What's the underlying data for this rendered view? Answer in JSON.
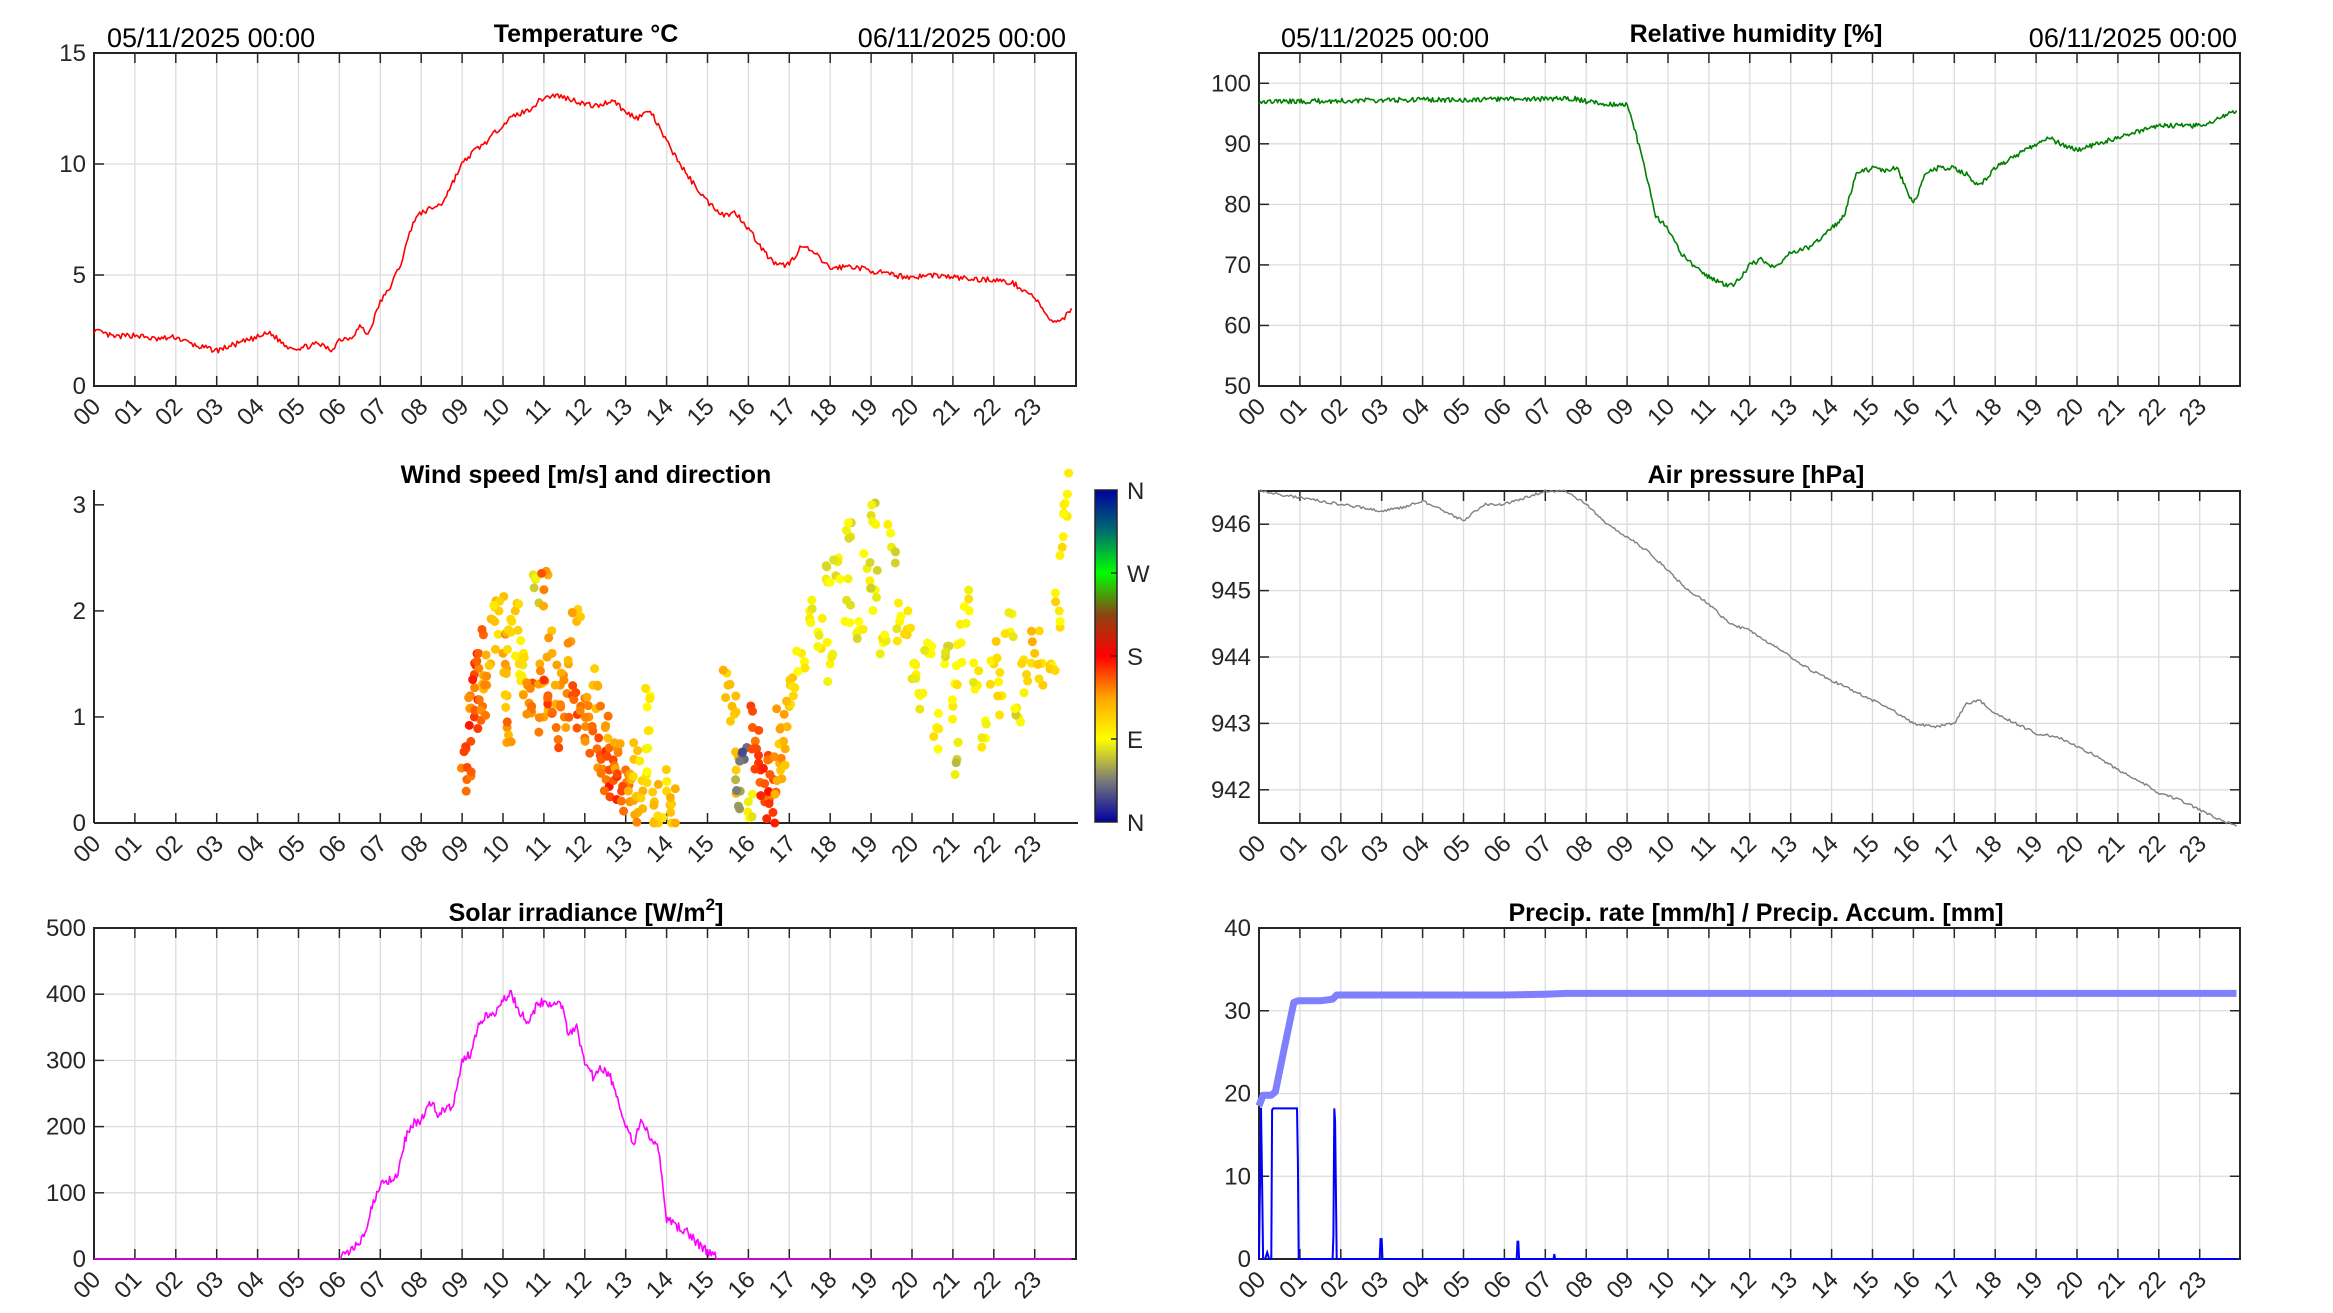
{
  "header": {
    "start_date": "05/11/2025 00:00",
    "end_date": "06/11/2025 00:00"
  },
  "x_ticks": [
    "00",
    "01",
    "02",
    "03",
    "04",
    "05",
    "06",
    "07",
    "08",
    "09",
    "10",
    "11",
    "12",
    "13",
    "14",
    "15",
    "16",
    "17",
    "18",
    "19",
    "20",
    "21",
    "22",
    "23"
  ],
  "chart_data": [
    {
      "id": "temperature",
      "type": "line",
      "title": "Temperature °C",
      "xlabel": "",
      "ylabel": "",
      "xlim": [
        0,
        23.9
      ],
      "ylim": [
        0,
        15
      ],
      "yticks": [
        0,
        5,
        10,
        15
      ],
      "grid": true,
      "color": "#ff0000",
      "x": [
        0,
        0.5,
        1,
        1.5,
        2,
        2.5,
        3,
        3.5,
        4,
        4.3,
        4.7,
        5,
        5.5,
        5.8,
        6,
        6.3,
        6.5,
        6.7,
        7,
        7.2,
        7.5,
        7.8,
        8,
        8.5,
        9,
        9.3,
        9.6,
        10,
        10.3,
        10.6,
        11,
        11.3,
        11.7,
        12,
        12.3,
        12.7,
        13,
        13.3,
        13.6,
        14,
        14.5,
        15,
        15.4,
        15.7,
        16,
        16.4,
        16.7,
        17,
        17.3,
        17.6,
        18,
        18.5,
        19,
        19.5,
        20,
        20.5,
        21,
        21.5,
        22,
        22.5,
        23,
        23.3,
        23.6,
        23.9
      ],
      "y": [
        2.5,
        2.2,
        2.3,
        2.1,
        2.2,
        1.8,
        1.6,
        1.9,
        2.2,
        2.4,
        1.8,
        1.7,
        1.9,
        1.6,
        2.1,
        2.2,
        2.7,
        2.3,
        3.8,
        4.3,
        5.5,
        7.4,
        7.8,
        8.2,
        10.0,
        10.6,
        11.0,
        11.8,
        12.2,
        12.4,
        13.0,
        13.1,
        12.9,
        12.7,
        12.6,
        12.9,
        12.3,
        12.1,
        12.4,
        11.0,
        9.5,
        8.3,
        7.7,
        7.8,
        7.1,
        6.0,
        5.4,
        5.5,
        6.3,
        6.0,
        5.3,
        5.4,
        5.2,
        5.0,
        4.9,
        5.0,
        4.9,
        4.8,
        4.8,
        4.6,
        4.0,
        3.1,
        2.8,
        3.5
      ],
      "annotations": [
        "05/11/2025 00:00",
        "06/11/2025 00:00"
      ]
    },
    {
      "id": "humidity",
      "type": "line",
      "title": "Relative humidity [%]",
      "xlabel": "",
      "ylabel": "",
      "xlim": [
        0,
        23.9
      ],
      "ylim": [
        50,
        105
      ],
      "yticks": [
        50,
        60,
        70,
        80,
        90,
        100
      ],
      "grid": true,
      "color": "#008000",
      "x": [
        0,
        1,
        2,
        3,
        4,
        5,
        6,
        7,
        7.7,
        8,
        8.5,
        9,
        9.2,
        9.5,
        9.7,
        10,
        10.3,
        10.6,
        11,
        11.3,
        11.6,
        12,
        12.3,
        12.6,
        13,
        13.5,
        14,
        14.3,
        14.6,
        15,
        15.3,
        15.6,
        16,
        16.3,
        16.6,
        17,
        17.3,
        17.6,
        18,
        18.5,
        19,
        19.3,
        19.6,
        20,
        20.5,
        21,
        21.5,
        22,
        22.5,
        23,
        23.4,
        23.9
      ],
      "y": [
        97.0,
        97.0,
        97.1,
        97.2,
        97.3,
        97.2,
        97.4,
        97.4,
        97.5,
        97.0,
        96.6,
        96.5,
        92,
        84,
        78,
        76,
        72,
        70,
        68,
        67,
        66.5,
        70,
        71,
        69.5,
        72,
        73,
        76,
        78,
        85,
        86,
        85.5,
        86,
        80,
        85,
        86,
        86,
        85,
        83,
        86,
        88,
        90,
        91,
        90,
        89,
        90,
        91,
        92,
        93,
        93,
        93,
        94,
        95.5
      ]
    },
    {
      "id": "wind",
      "type": "scatter",
      "title": "Wind speed [m/s] and direction",
      "xlabel": "",
      "ylabel": "",
      "xlim": [
        0,
        23.9
      ],
      "ylim": [
        0,
        3.14
      ],
      "yticks": [
        0,
        1,
        2,
        3
      ],
      "grid": false,
      "colorbar": {
        "labels": [
          "N",
          "E",
          "S",
          "W",
          "N"
        ],
        "colors": [
          "#0000a0",
          "#7a7a7a",
          "#ffff00",
          "#ffa500",
          "#ff0000",
          "#8b4513",
          "#00ff00",
          "#006e6e",
          "#0000a0"
        ]
      },
      "points_note": "speed in m/s; direction in degrees (0=N, 90=E, 180=S, 270=W)",
      "points": [
        [
          9.1,
          0.3,
          150
        ],
        [
          9.1,
          0.7,
          150
        ],
        [
          9.2,
          1.2,
          145
        ],
        [
          9.3,
          1.4,
          160
        ],
        [
          9.3,
          1.0,
          165
        ],
        [
          9.4,
          1.6,
          155
        ],
        [
          9.5,
          1.1,
          150
        ],
        [
          9.6,
          1.3,
          140
        ],
        [
          9.7,
          1.5,
          130
        ],
        [
          9.8,
          1.9,
          120
        ],
        [
          9.9,
          2.0,
          115
        ],
        [
          10.0,
          1.6,
          135
        ],
        [
          10.1,
          1.2,
          120
        ],
        [
          10.1,
          0.9,
          140
        ],
        [
          10.2,
          1.8,
          110
        ],
        [
          10.3,
          2.0,
          120
        ],
        [
          10.4,
          1.4,
          95
        ],
        [
          10.5,
          1.6,
          100
        ],
        [
          10.6,
          1.3,
          145
        ],
        [
          10.7,
          1.1,
          150
        ],
        [
          10.8,
          2.3,
          80
        ],
        [
          10.9,
          1.5,
          130
        ],
        [
          11.0,
          1.0,
          135
        ],
        [
          11.0,
          2.2,
          145
        ],
        [
          11.1,
          1.2,
          155
        ],
        [
          11.2,
          1.6,
          130
        ],
        [
          11.3,
          0.9,
          150
        ],
        [
          11.4,
          1.3,
          140
        ],
        [
          11.5,
          1.0,
          145
        ],
        [
          11.6,
          1.5,
          135
        ],
        [
          11.7,
          1.2,
          160
        ],
        [
          11.8,
          1.9,
          125
        ],
        [
          11.9,
          1.1,
          150
        ],
        [
          12.0,
          0.8,
          150
        ],
        [
          12.1,
          1.0,
          140
        ],
        [
          12.2,
          1.3,
          120
        ],
        [
          12.3,
          0.7,
          150
        ],
        [
          12.4,
          0.6,
          155
        ],
        [
          12.5,
          0.9,
          135
        ],
        [
          12.6,
          0.5,
          160
        ],
        [
          12.7,
          0.4,
          155
        ],
        [
          12.8,
          0.7,
          140
        ],
        [
          12.9,
          0.3,
          160
        ],
        [
          13.0,
          0.5,
          150
        ],
        [
          13.1,
          0.2,
          140
        ],
        [
          13.2,
          0.6,
          120
        ],
        [
          13.3,
          0.1,
          130
        ],
        [
          13.4,
          0.4,
          110
        ],
        [
          13.5,
          0.7,
          100
        ],
        [
          13.6,
          1.2,
          90
        ],
        [
          13.7,
          0.2,
          120
        ],
        [
          13.8,
          0.0,
          115
        ],
        [
          14.0,
          0.3,
          110
        ],
        [
          14.1,
          0.1,
          120
        ],
        [
          15.5,
          1.3,
          120
        ],
        [
          15.6,
          1.1,
          125
        ],
        [
          15.7,
          0.5,
          115
        ],
        [
          15.8,
          0.3,
          60
        ],
        [
          15.9,
          0.6,
          40
        ],
        [
          16.0,
          0.2,
          85
        ],
        [
          16.1,
          0.9,
          155
        ],
        [
          16.2,
          0.7,
          160
        ],
        [
          16.3,
          0.5,
          165
        ],
        [
          16.4,
          0.2,
          160
        ],
        [
          16.5,
          0.6,
          150
        ],
        [
          16.6,
          0.1,
          165
        ],
        [
          16.7,
          0.4,
          130
        ],
        [
          16.8,
          0.9,
          125
        ],
        [
          16.9,
          0.7,
          130
        ],
        [
          17.0,
          1.1,
          120
        ],
        [
          17.1,
          1.2,
          110
        ],
        [
          17.3,
          1.6,
          100
        ],
        [
          17.5,
          2.0,
          95
        ],
        [
          17.7,
          1.8,
          90
        ],
        [
          17.9,
          2.3,
          85
        ],
        [
          18.0,
          1.5,
          95
        ],
        [
          18.2,
          2.5,
          88
        ],
        [
          18.4,
          2.1,
          80
        ],
        [
          18.5,
          2.7,
          82
        ],
        [
          18.7,
          1.9,
          90
        ],
        [
          18.9,
          2.4,
          85
        ],
        [
          19.0,
          2.9,
          80
        ],
        [
          19.1,
          2.2,
          88
        ],
        [
          19.3,
          1.7,
          90
        ],
        [
          19.5,
          2.6,
          84
        ],
        [
          19.7,
          1.9,
          95
        ],
        [
          19.9,
          2.0,
          100
        ],
        [
          20.1,
          1.4,
          95
        ],
        [
          20.2,
          1.2,
          90
        ],
        [
          20.4,
          1.6,
          92
        ],
        [
          20.6,
          0.9,
          95
        ],
        [
          20.8,
          1.5,
          90
        ],
        [
          21.0,
          1.1,
          100
        ],
        [
          21.1,
          0.6,
          75
        ],
        [
          21.2,
          1.7,
          88
        ],
        [
          21.4,
          2.0,
          92
        ],
        [
          21.6,
          1.3,
          95
        ],
        [
          21.8,
          0.8,
          90
        ],
        [
          22.0,
          1.5,
          110
        ],
        [
          22.2,
          1.2,
          100
        ],
        [
          22.4,
          1.8,
          95
        ],
        [
          22.6,
          1.0,
          88
        ],
        [
          22.8,
          1.4,
          110
        ],
        [
          23.0,
          1.6,
          120
        ],
        [
          23.2,
          1.3,
          115
        ],
        [
          23.4,
          1.5,
          105
        ],
        [
          23.6,
          2.0,
          100
        ],
        [
          23.7,
          2.7,
          95
        ],
        [
          23.8,
          3.1,
          95
        ]
      ]
    },
    {
      "id": "pressure",
      "type": "line",
      "title": "Air pressure [hPa]",
      "xlabel": "",
      "ylabel": "",
      "xlim": [
        0,
        23.9
      ],
      "ylim": [
        941.5,
        946.5
      ],
      "yticks": [
        942,
        943,
        944,
        945,
        946
      ],
      "grid": true,
      "color": "#808080",
      "x": [
        0,
        0.5,
        1,
        1.5,
        2,
        2.5,
        3,
        3.5,
        4,
        4.5,
        5,
        5.5,
        6,
        6.5,
        7,
        7.5,
        8,
        8.5,
        9,
        9.5,
        10,
        10.5,
        11,
        11.5,
        12,
        12.5,
        13,
        13.5,
        14,
        14.5,
        15,
        15.5,
        16,
        16.5,
        17,
        17.3,
        17.6,
        18,
        18.5,
        19,
        19.5,
        20,
        20.5,
        21,
        21.5,
        22,
        22.5,
        23,
        23.5,
        23.9
      ],
      "y": [
        946.5,
        946.45,
        946.4,
        946.35,
        946.3,
        946.25,
        946.2,
        946.25,
        946.35,
        946.2,
        946.05,
        946.3,
        946.3,
        946.4,
        946.5,
        946.5,
        946.3,
        946.0,
        945.8,
        945.6,
        945.3,
        945.0,
        944.8,
        944.5,
        944.4,
        944.2,
        944.0,
        943.8,
        943.65,
        943.5,
        943.35,
        943.2,
        943.0,
        942.95,
        943.0,
        943.3,
        943.35,
        943.15,
        943.0,
        942.85,
        942.8,
        942.65,
        942.5,
        942.3,
        942.15,
        941.95,
        941.85,
        941.7,
        941.55,
        941.45
      ]
    },
    {
      "id": "solar",
      "type": "line",
      "title": "Solar irradiance [W/m2]",
      "title_main": "Solar irradiance [W/m",
      "title_sup": "2",
      "title_tail": "]",
      "xlabel": "",
      "ylabel": "",
      "xlim": [
        0,
        23.9
      ],
      "ylim": [
        0,
        500
      ],
      "yticks": [
        0,
        100,
        200,
        300,
        400,
        500
      ],
      "grid": true,
      "color": "#ff00ff",
      "x": [
        0,
        1,
        2,
        3,
        4,
        5,
        6,
        6.2,
        6.4,
        6.6,
        6.8,
        7.0,
        7.2,
        7.4,
        7.6,
        7.8,
        8.0,
        8.2,
        8.4,
        8.6,
        8.8,
        9.0,
        9.2,
        9.4,
        9.6,
        9.8,
        10.0,
        10.2,
        10.4,
        10.6,
        10.8,
        11.0,
        11.2,
        11.4,
        11.6,
        11.8,
        12.0,
        12.2,
        12.4,
        12.6,
        12.8,
        13.0,
        13.2,
        13.4,
        13.6,
        13.8,
        14.0,
        14.5,
        15.0,
        15.3,
        16,
        17,
        18,
        19,
        20,
        21,
        22,
        23,
        23.9
      ],
      "y": [
        0,
        0,
        0,
        0,
        0,
        0,
        0,
        8,
        20,
        35,
        80,
        115,
        120,
        125,
        180,
        205,
        210,
        240,
        220,
        225,
        235,
        300,
        310,
        355,
        370,
        370,
        395,
        400,
        375,
        360,
        380,
        390,
        385,
        390,
        340,
        350,
        300,
        275,
        290,
        280,
        240,
        200,
        175,
        210,
        180,
        165,
        60,
        40,
        10,
        0,
        0,
        0,
        0,
        0,
        0,
        0,
        0,
        0,
        0
      ]
    },
    {
      "id": "precipitation",
      "type": "line",
      "title": "Precip. rate [mm/h] / Precip. Accum. [mm]",
      "xlabel": "",
      "ylabel": "",
      "xlim": [
        0,
        23.9
      ],
      "ylim": [
        0,
        40
      ],
      "yticks": [
        0,
        10,
        20,
        30,
        40
      ],
      "grid": true,
      "series": [
        {
          "name": "Precip. Accum. [mm]",
          "color": "#8080ff",
          "x": [
            0,
            0.1,
            0.3,
            0.4,
            0.6,
            0.85,
            0.95,
            1.5,
            1.8,
            1.9,
            2.0,
            6.0,
            7.0,
            7.5,
            12,
            23.9
          ],
          "y": [
            18.5,
            19.8,
            19.8,
            20.2,
            25,
            31,
            31.2,
            31.2,
            31.4,
            31.9,
            31.9,
            31.9,
            32.0,
            32.1,
            32.1,
            32.1
          ]
        },
        {
          "name": "Precip. rate [mm/h]",
          "color": "#0000ff",
          "x": [
            0,
            0.05,
            0.08,
            0.1,
            0.15,
            0.2,
            0.25,
            0.3,
            0.32,
            0.35,
            0.4,
            0.93,
            0.95,
            0.97,
            1.0,
            1.8,
            1.82,
            1.84,
            1.86,
            1.9,
            1.92,
            2.95,
            2.97,
            3.0,
            3.02,
            6.3,
            6.32,
            6.34,
            6.36,
            7.2,
            7.22,
            7.24,
            23.9
          ],
          "y": [
            0,
            18.3,
            7.5,
            0,
            0,
            0.8,
            0,
            0,
            18.0,
            18.2,
            18.2,
            18.2,
            11.8,
            0,
            0,
            0,
            2.8,
            18.2,
            16.6,
            0,
            0,
            0,
            2.4,
            2.4,
            0,
            0,
            2.1,
            2.1,
            0,
            0,
            0.6,
            0,
            0
          ]
        }
      ]
    }
  ]
}
